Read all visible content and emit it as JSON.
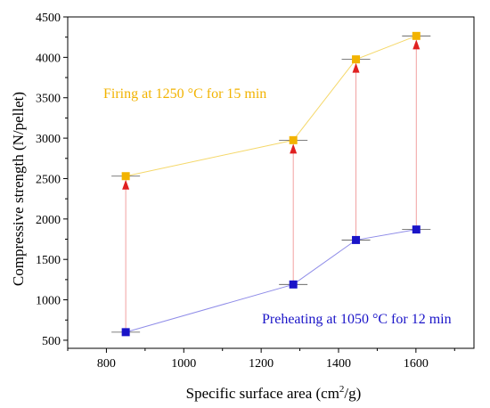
{
  "chart_data": {
    "type": "line",
    "title": "",
    "xlabel_main": "Specific surface area (cm",
    "xlabel_sup": "2",
    "xlabel_tail": "/g)",
    "ylabel": "Compressive strength (N/pellet)",
    "xlim": [
      700,
      1750
    ],
    "ylim": [
      400,
      4500
    ],
    "xticks": [
      800,
      1000,
      1200,
      1400,
      1600
    ],
    "yticks": [
      500,
      1000,
      1500,
      2000,
      2500,
      3000,
      3500,
      4000,
      4500
    ],
    "x": [
      850,
      1283,
      1445,
      1601
    ],
    "series": [
      {
        "name": "Firing at 1250 °C for 15 min",
        "values": [
          2530,
          2975,
          3975,
          4265
        ],
        "marker_color": "#f2b300",
        "line_color": "#f5d86a",
        "label_color": "#f2b300"
      },
      {
        "name": "Preheating at 1050 °C for 12 min",
        "values": [
          600,
          1190,
          1740,
          1870
        ],
        "marker_color": "#1a14c8",
        "line_color": "#8f8ce8",
        "label_color": "#1a14c8"
      }
    ],
    "arrow_color": "#e02020",
    "connector_color": "#f2a0a0",
    "grid": false,
    "legend": "none"
  }
}
